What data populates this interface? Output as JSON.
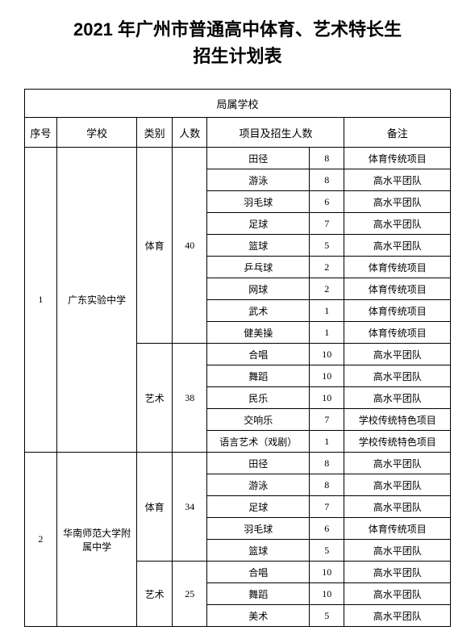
{
  "title_line1": "2021 年广州市普通高中体育、艺术特长生",
  "title_line2": "招生计划表",
  "section_header": "局属学校",
  "headers": {
    "seq": "序号",
    "school": "学校",
    "category": "类别",
    "count": "人数",
    "items": "项目及招生人数",
    "note": "备注"
  },
  "school1": {
    "seq": "1",
    "name": "广东实验中学",
    "cat_pe": "体育",
    "count_pe": "40",
    "cat_art": "艺术",
    "count_art": "38",
    "pe": [
      {
        "item": "田径",
        "num": "8",
        "note": "体育传统项目"
      },
      {
        "item": "游泳",
        "num": "8",
        "note": "高水平团队"
      },
      {
        "item": "羽毛球",
        "num": "6",
        "note": "高水平团队"
      },
      {
        "item": "足球",
        "num": "7",
        "note": "高水平团队"
      },
      {
        "item": "篮球",
        "num": "5",
        "note": "高水平团队"
      },
      {
        "item": "乒乓球",
        "num": "2",
        "note": "体育传统项目"
      },
      {
        "item": "网球",
        "num": "2",
        "note": "体育传统项目"
      },
      {
        "item": "武术",
        "num": "1",
        "note": "体育传统项目"
      },
      {
        "item": "健美操",
        "num": "1",
        "note": "体育传统项目"
      }
    ],
    "art": [
      {
        "item": "合唱",
        "num": "10",
        "note": "高水平团队"
      },
      {
        "item": "舞蹈",
        "num": "10",
        "note": "高水平团队"
      },
      {
        "item": "民乐",
        "num": "10",
        "note": "高水平团队"
      },
      {
        "item": "交响乐",
        "num": "7",
        "note": "学校传统特色项目"
      },
      {
        "item": "语言艺术（戏剧）",
        "num": "1",
        "note": "学校传统特色项目"
      }
    ]
  },
  "school2": {
    "seq": "2",
    "name": "华南师范大学附属中学",
    "cat_pe": "体育",
    "count_pe": "34",
    "cat_art": "艺术",
    "count_art": "25",
    "pe": [
      {
        "item": "田径",
        "num": "8",
        "note": "高水平团队"
      },
      {
        "item": "游泳",
        "num": "8",
        "note": "高水平团队"
      },
      {
        "item": "足球",
        "num": "7",
        "note": "高水平团队"
      },
      {
        "item": "羽毛球",
        "num": "6",
        "note": "体育传统项目"
      },
      {
        "item": "篮球",
        "num": "5",
        "note": "高水平团队"
      }
    ],
    "art": [
      {
        "item": "合唱",
        "num": "10",
        "note": "高水平团队"
      },
      {
        "item": "舞蹈",
        "num": "10",
        "note": "高水平团队"
      },
      {
        "item": "美术",
        "num": "5",
        "note": "高水平团队"
      }
    ]
  }
}
